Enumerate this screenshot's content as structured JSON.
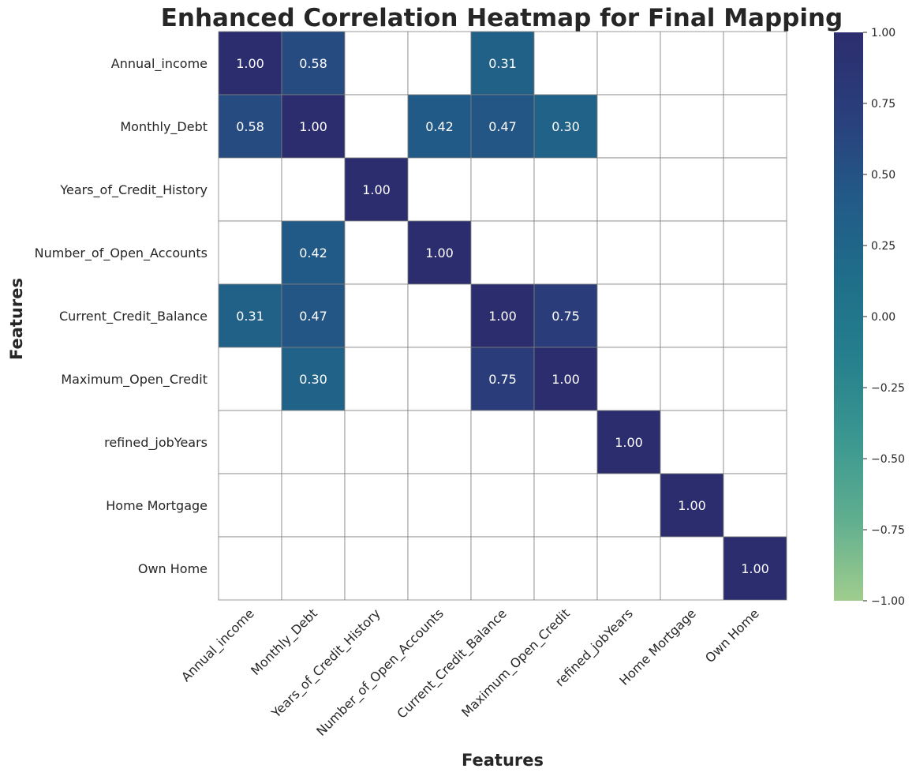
{
  "chart_data": {
    "type": "heatmap",
    "title": "Enhanced Correlation Heatmap for Final Mapping",
    "xlabel": "Features",
    "ylabel": "Features",
    "rows": [
      "Annual_income",
      "Monthly_Debt",
      "Years_of_Credit_History",
      "Number_of_Open_Accounts",
      "Current_Credit_Balance",
      "Maximum_Open_Credit",
      "refined_jobYears",
      "Home Mortgage",
      "Own Home"
    ],
    "columns": [
      "Annual_income",
      "Monthly_Debt",
      "Years_of_Credit_History",
      "Number_of_Open_Accounts",
      "Current_Credit_Balance",
      "Maximum_Open_Credit",
      "refined_jobYears",
      "Home Mortgage",
      "Own Home"
    ],
    "values": [
      [
        1.0,
        0.58,
        null,
        null,
        0.31,
        null,
        null,
        null,
        null
      ],
      [
        0.58,
        1.0,
        null,
        0.42,
        0.47,
        0.3,
        null,
        null,
        null
      ],
      [
        null,
        null,
        1.0,
        null,
        null,
        null,
        null,
        null,
        null
      ],
      [
        null,
        0.42,
        null,
        1.0,
        null,
        null,
        null,
        null,
        null
      ],
      [
        0.31,
        0.47,
        null,
        null,
        1.0,
        0.75,
        null,
        null,
        null
      ],
      [
        null,
        0.3,
        null,
        null,
        0.75,
        1.0,
        null,
        null,
        null
      ],
      [
        null,
        null,
        null,
        null,
        null,
        null,
        1.0,
        null,
        null
      ],
      [
        null,
        null,
        null,
        null,
        null,
        null,
        null,
        1.0,
        null
      ],
      [
        null,
        null,
        null,
        null,
        null,
        null,
        null,
        null,
        1.0
      ]
    ],
    "value_format": "0.00",
    "colorbar": {
      "range": [
        -1.0,
        1.0
      ],
      "ticks": [
        "1.00",
        "0.75",
        "0.50",
        "0.25",
        "0.00",
        "−0.25",
        "−0.50",
        "−0.75",
        "−1.00"
      ],
      "colormap": "crest",
      "color_stops": [
        "#a0cd8e",
        "#5fae8f",
        "#3a9790",
        "#257f8d",
        "#1f6d8a",
        "#225987",
        "#2a3e7c",
        "#2c2d6e"
      ]
    },
    "grid_line_color": "#808080",
    "masked_cell_color": "#ffffff"
  }
}
